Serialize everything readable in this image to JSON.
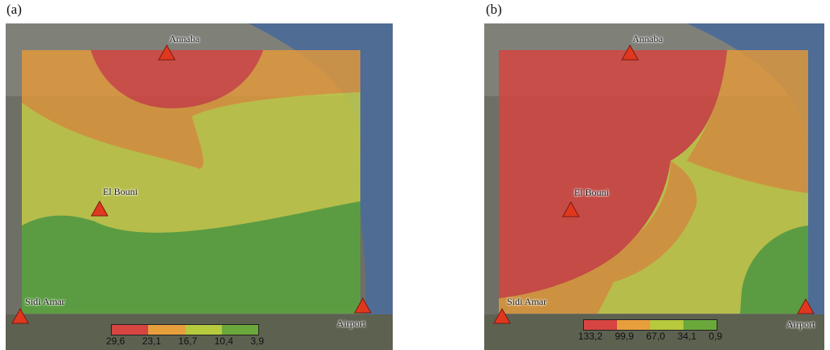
{
  "panels": [
    {
      "label": "(a)",
      "stations": {
        "annaba": "Annaba",
        "el_bouni": "El Bouni",
        "sidi_amar": "Sidi Amar",
        "airport": "Airport"
      },
      "legend": {
        "colors": [
          "#d64541",
          "#e79f3d",
          "#b7c93d",
          "#6aa83c"
        ],
        "ticks": [
          "29,6",
          "23,1",
          "16,7",
          "10,4",
          "3,9"
        ]
      }
    },
    {
      "label": "(b)",
      "stations": {
        "annaba": "Annaba",
        "el_bouni": "El Bouni",
        "sidi_amar": "Sidi Amar",
        "airport": "Airport"
      },
      "legend": {
        "colors": [
          "#d64541",
          "#e79f3d",
          "#b7c93d",
          "#6aa83c"
        ],
        "ticks": [
          "133,2",
          "99,9",
          "67,0",
          "34,1",
          "0,9"
        ]
      }
    }
  ],
  "colors": {
    "zone_red": "#d7443f",
    "zone_orange": "#e39a3a",
    "zone_yellow": "#c7cf45",
    "zone_green": "#58a73b",
    "sea": "#4f6c95",
    "marker_fill": "#e0381f"
  }
}
